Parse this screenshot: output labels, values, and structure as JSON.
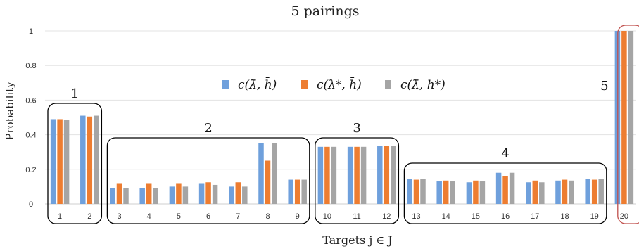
{
  "chart_data": {
    "type": "bar",
    "title": "5 pairings",
    "xlabel": "Targets j ∈ J",
    "ylabel": "Probability",
    "ylim": [
      0,
      1
    ],
    "yticks": [
      0,
      0.2,
      0.4,
      0.6,
      0.8,
      1
    ],
    "ytick_labels": [
      "0",
      "0.2",
      "0.4",
      "0.6",
      "0.8",
      "1"
    ],
    "grid": true,
    "legend_position": "top-center",
    "categories": [
      "1",
      "2",
      "3",
      "4",
      "5",
      "6",
      "7",
      "8",
      "9",
      "10",
      "11",
      "12",
      "13",
      "14",
      "15",
      "16",
      "17",
      "18",
      "19",
      "20"
    ],
    "series": [
      {
        "name": "c(λ̄, h̄)",
        "color": "#6FA0DC",
        "values": [
          0.49,
          0.51,
          0.09,
          0.09,
          0.1,
          0.12,
          0.1,
          0.35,
          0.14,
          0.33,
          0.33,
          0.335,
          0.145,
          0.13,
          0.125,
          0.18,
          0.125,
          0.135,
          0.145,
          1.0
        ]
      },
      {
        "name": "c(λ*, h̄)",
        "color": "#ED7D31",
        "values": [
          0.49,
          0.505,
          0.12,
          0.12,
          0.12,
          0.125,
          0.125,
          0.25,
          0.14,
          0.33,
          0.33,
          0.335,
          0.14,
          0.135,
          0.135,
          0.16,
          0.135,
          0.14,
          0.14,
          1.0
        ]
      },
      {
        "name": "c(λ̄, h*)",
        "color": "#A5A5A5",
        "values": [
          0.485,
          0.51,
          0.09,
          0.09,
          0.1,
          0.11,
          0.1,
          0.35,
          0.14,
          0.33,
          0.33,
          0.335,
          0.145,
          0.13,
          0.13,
          0.18,
          0.125,
          0.135,
          0.145,
          1.0
        ]
      }
    ],
    "groups": [
      {
        "label": "1",
        "from": "1",
        "to": "2",
        "color": "#000000"
      },
      {
        "label": "2",
        "from": "3",
        "to": "9",
        "color": "#000000"
      },
      {
        "label": "3",
        "from": "10",
        "to": "12",
        "color": "#000000"
      },
      {
        "label": "4",
        "from": "13",
        "to": "19",
        "color": "#000000"
      },
      {
        "label": "5",
        "from": "20",
        "to": "20",
        "color": "#C0504D"
      }
    ]
  }
}
